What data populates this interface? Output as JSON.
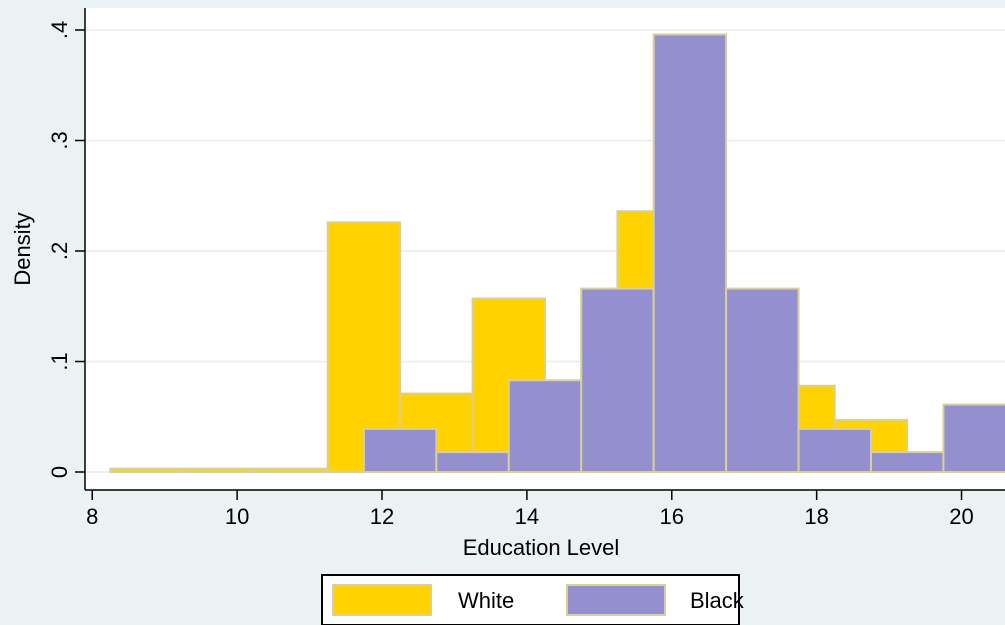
{
  "chart_data": {
    "type": "bar",
    "title": "",
    "xlabel": "Education Level",
    "ylabel": "Density",
    "xlim": [
      7.9,
      20.6
    ],
    "ylim": [
      0,
      0.41
    ],
    "x_ticks": [
      8,
      10,
      12,
      14,
      16,
      18,
      20
    ],
    "x_tick_labels": [
      "8",
      "10",
      "12",
      "14",
      "16",
      "18",
      "20"
    ],
    "y_ticks": [
      0,
      0.1,
      0.2,
      0.3,
      0.4
    ],
    "y_tick_labels": [
      "0",
      ".1",
      ".2",
      ".3",
      ".4"
    ],
    "grid": true,
    "legend_position": "bottom",
    "bar_width": 1,
    "bar_outline_color": "#d9cf9a",
    "series": [
      {
        "name": "White",
        "color": "#ffd200",
        "x": [
          8.75,
          9.75,
          10.75,
          11.75,
          12.75,
          13.75,
          14.75,
          15.75,
          16.75,
          17.75,
          18.75,
          19.75
        ],
        "values": [
          0.003,
          0.003,
          0.003,
          0.226,
          0.071,
          0.157,
          0.076,
          0.236,
          0.076,
          0.078,
          0.047,
          0.016
        ]
      },
      {
        "name": "Black",
        "color": "#9490cf",
        "x": [
          12.25,
          13.25,
          14.25,
          15.25,
          16.25,
          17.25,
          18.25,
          19.25,
          20.25
        ],
        "values": [
          0.039,
          0.018,
          0.083,
          0.166,
          0.396,
          0.166,
          0.039,
          0.018,
          0.061
        ]
      }
    ]
  }
}
